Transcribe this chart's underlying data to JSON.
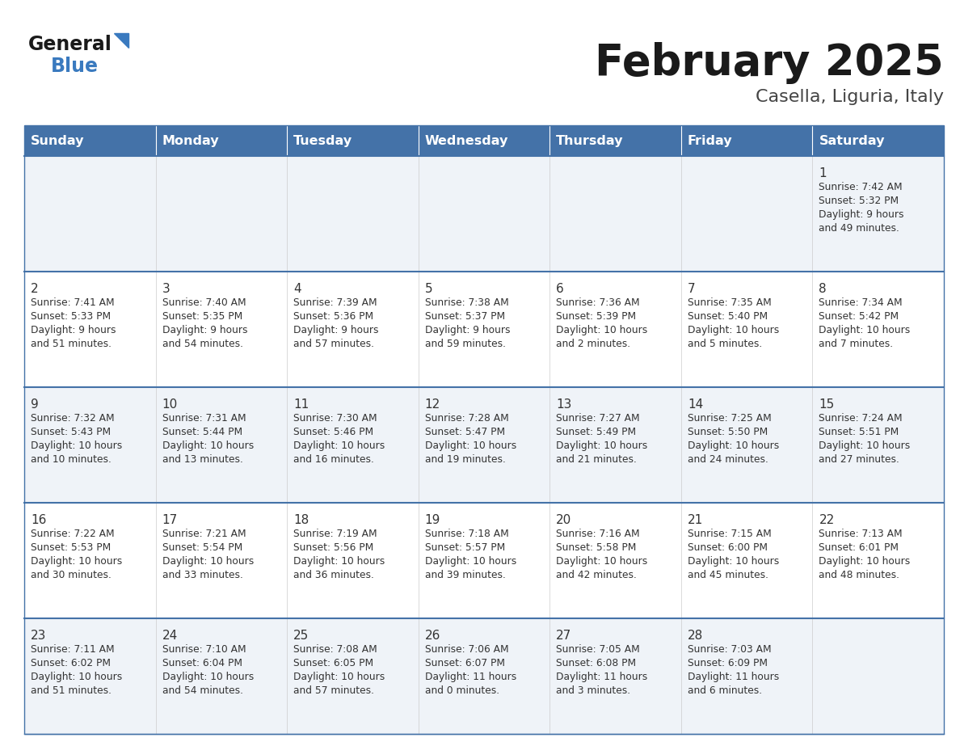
{
  "title": "February 2025",
  "subtitle": "Casella, Liguria, Italy",
  "header_color": "#4472a8",
  "header_text_color": "#ffffff",
  "cell_bg_row0": "#eff3f8",
  "cell_bg_row1": "#ffffff",
  "border_color": "#4472a8",
  "days_of_week": [
    "Sunday",
    "Monday",
    "Tuesday",
    "Wednesday",
    "Thursday",
    "Friday",
    "Saturday"
  ],
  "title_color": "#1a1a1a",
  "subtitle_color": "#444444",
  "day_num_color": "#333333",
  "cell_text_color": "#333333",
  "logo_general_color": "#1a1a1a",
  "logo_blue_color": "#3a7abf",
  "logo_triangle_color": "#3a7abf",
  "calendar": [
    [
      null,
      null,
      null,
      null,
      null,
      null,
      {
        "day": "1",
        "sunrise": "7:42 AM",
        "sunset": "5:32 PM",
        "daylight": "9 hours\nand 49 minutes."
      }
    ],
    [
      {
        "day": "2",
        "sunrise": "7:41 AM",
        "sunset": "5:33 PM",
        "daylight": "9 hours\nand 51 minutes."
      },
      {
        "day": "3",
        "sunrise": "7:40 AM",
        "sunset": "5:35 PM",
        "daylight": "9 hours\nand 54 minutes."
      },
      {
        "day": "4",
        "sunrise": "7:39 AM",
        "sunset": "5:36 PM",
        "daylight": "9 hours\nand 57 minutes."
      },
      {
        "day": "5",
        "sunrise": "7:38 AM",
        "sunset": "5:37 PM",
        "daylight": "9 hours\nand 59 minutes."
      },
      {
        "day": "6",
        "sunrise": "7:36 AM",
        "sunset": "5:39 PM",
        "daylight": "10 hours\nand 2 minutes."
      },
      {
        "day": "7",
        "sunrise": "7:35 AM",
        "sunset": "5:40 PM",
        "daylight": "10 hours\nand 5 minutes."
      },
      {
        "day": "8",
        "sunrise": "7:34 AM",
        "sunset": "5:42 PM",
        "daylight": "10 hours\nand 7 minutes."
      }
    ],
    [
      {
        "day": "9",
        "sunrise": "7:32 AM",
        "sunset": "5:43 PM",
        "daylight": "10 hours\nand 10 minutes."
      },
      {
        "day": "10",
        "sunrise": "7:31 AM",
        "sunset": "5:44 PM",
        "daylight": "10 hours\nand 13 minutes."
      },
      {
        "day": "11",
        "sunrise": "7:30 AM",
        "sunset": "5:46 PM",
        "daylight": "10 hours\nand 16 minutes."
      },
      {
        "day": "12",
        "sunrise": "7:28 AM",
        "sunset": "5:47 PM",
        "daylight": "10 hours\nand 19 minutes."
      },
      {
        "day": "13",
        "sunrise": "7:27 AM",
        "sunset": "5:49 PM",
        "daylight": "10 hours\nand 21 minutes."
      },
      {
        "day": "14",
        "sunrise": "7:25 AM",
        "sunset": "5:50 PM",
        "daylight": "10 hours\nand 24 minutes."
      },
      {
        "day": "15",
        "sunrise": "7:24 AM",
        "sunset": "5:51 PM",
        "daylight": "10 hours\nand 27 minutes."
      }
    ],
    [
      {
        "day": "16",
        "sunrise": "7:22 AM",
        "sunset": "5:53 PM",
        "daylight": "10 hours\nand 30 minutes."
      },
      {
        "day": "17",
        "sunrise": "7:21 AM",
        "sunset": "5:54 PM",
        "daylight": "10 hours\nand 33 minutes."
      },
      {
        "day": "18",
        "sunrise": "7:19 AM",
        "sunset": "5:56 PM",
        "daylight": "10 hours\nand 36 minutes."
      },
      {
        "day": "19",
        "sunrise": "7:18 AM",
        "sunset": "5:57 PM",
        "daylight": "10 hours\nand 39 minutes."
      },
      {
        "day": "20",
        "sunrise": "7:16 AM",
        "sunset": "5:58 PM",
        "daylight": "10 hours\nand 42 minutes."
      },
      {
        "day": "21",
        "sunrise": "7:15 AM",
        "sunset": "6:00 PM",
        "daylight": "10 hours\nand 45 minutes."
      },
      {
        "day": "22",
        "sunrise": "7:13 AM",
        "sunset": "6:01 PM",
        "daylight": "10 hours\nand 48 minutes."
      }
    ],
    [
      {
        "day": "23",
        "sunrise": "7:11 AM",
        "sunset": "6:02 PM",
        "daylight": "10 hours\nand 51 minutes."
      },
      {
        "day": "24",
        "sunrise": "7:10 AM",
        "sunset": "6:04 PM",
        "daylight": "10 hours\nand 54 minutes."
      },
      {
        "day": "25",
        "sunrise": "7:08 AM",
        "sunset": "6:05 PM",
        "daylight": "10 hours\nand 57 minutes."
      },
      {
        "day": "26",
        "sunrise": "7:06 AM",
        "sunset": "6:07 PM",
        "daylight": "11 hours\nand 0 minutes."
      },
      {
        "day": "27",
        "sunrise": "7:05 AM",
        "sunset": "6:08 PM",
        "daylight": "11 hours\nand 3 minutes."
      },
      {
        "day": "28",
        "sunrise": "7:03 AM",
        "sunset": "6:09 PM",
        "daylight": "11 hours\nand 6 minutes."
      },
      null
    ]
  ]
}
